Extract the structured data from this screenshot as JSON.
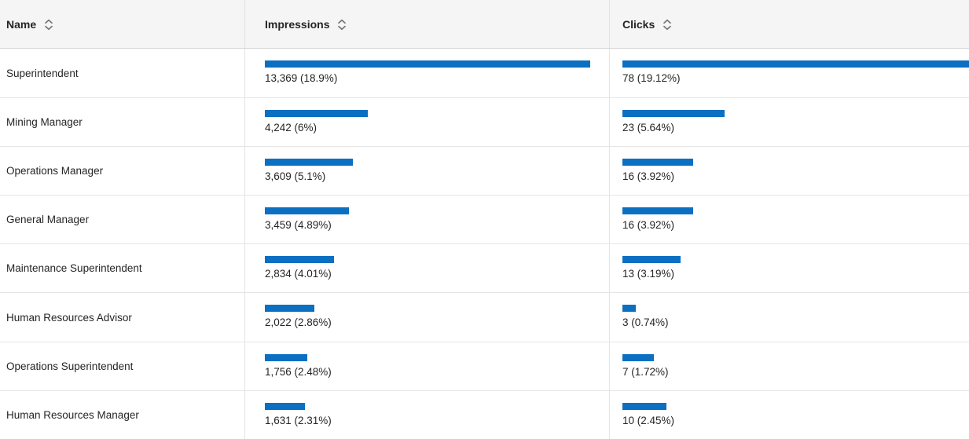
{
  "colors": {
    "bar": "#0b6fc2",
    "header_bg": "#f5f5f5"
  },
  "table": {
    "headers": [
      {
        "label": "Name",
        "sort_icon": "chevron-up-down"
      },
      {
        "label": "Impressions",
        "sort_icon": "chevron-up-down"
      },
      {
        "label": "Clicks",
        "sort_icon": "chevron-up-down"
      }
    ],
    "max": {
      "impressions": 13369,
      "clicks": 78
    },
    "rows": [
      {
        "name": "Superintendent",
        "impressions": {
          "label": "13,369 (18.9%)",
          "value": 13369,
          "bar_pct": 100
        },
        "clicks": {
          "label": "78 (19.12%)",
          "value": 78,
          "bar_pct": 100
        }
      },
      {
        "name": "Mining Manager",
        "impressions": {
          "label": "4,242 (6%)",
          "value": 4242,
          "bar_pct": 31.7
        },
        "clicks": {
          "label": "23 (5.64%)",
          "value": 23,
          "bar_pct": 29.5
        }
      },
      {
        "name": "Operations Manager",
        "impressions": {
          "label": "3,609 (5.1%)",
          "value": 3609,
          "bar_pct": 27.0
        },
        "clicks": {
          "label": "16 (3.92%)",
          "value": 16,
          "bar_pct": 20.5
        }
      },
      {
        "name": "General Manager",
        "impressions": {
          "label": "3,459 (4.89%)",
          "value": 3459,
          "bar_pct": 25.9
        },
        "clicks": {
          "label": "16 (3.92%)",
          "value": 16,
          "bar_pct": 20.5
        }
      },
      {
        "name": "Maintenance Superintendent",
        "impressions": {
          "label": "2,834 (4.01%)",
          "value": 2834,
          "bar_pct": 21.2
        },
        "clicks": {
          "label": "13 (3.19%)",
          "value": 13,
          "bar_pct": 16.7
        }
      },
      {
        "name": "Human Resources Advisor",
        "impressions": {
          "label": "2,022 (2.86%)",
          "value": 2022,
          "bar_pct": 15.1
        },
        "clicks": {
          "label": "3 (0.74%)",
          "value": 3,
          "bar_pct": 3.8
        }
      },
      {
        "name": "Operations Superintendent",
        "impressions": {
          "label": "1,756 (2.48%)",
          "value": 1756,
          "bar_pct": 13.1
        },
        "clicks": {
          "label": "7 (1.72%)",
          "value": 7,
          "bar_pct": 9.0
        }
      },
      {
        "name": "Human Resources Manager",
        "impressions": {
          "label": "1,631 (2.31%)",
          "value": 1631,
          "bar_pct": 12.2
        },
        "clicks": {
          "label": "10 (2.45%)",
          "value": 10,
          "bar_pct": 12.8
        }
      }
    ]
  }
}
